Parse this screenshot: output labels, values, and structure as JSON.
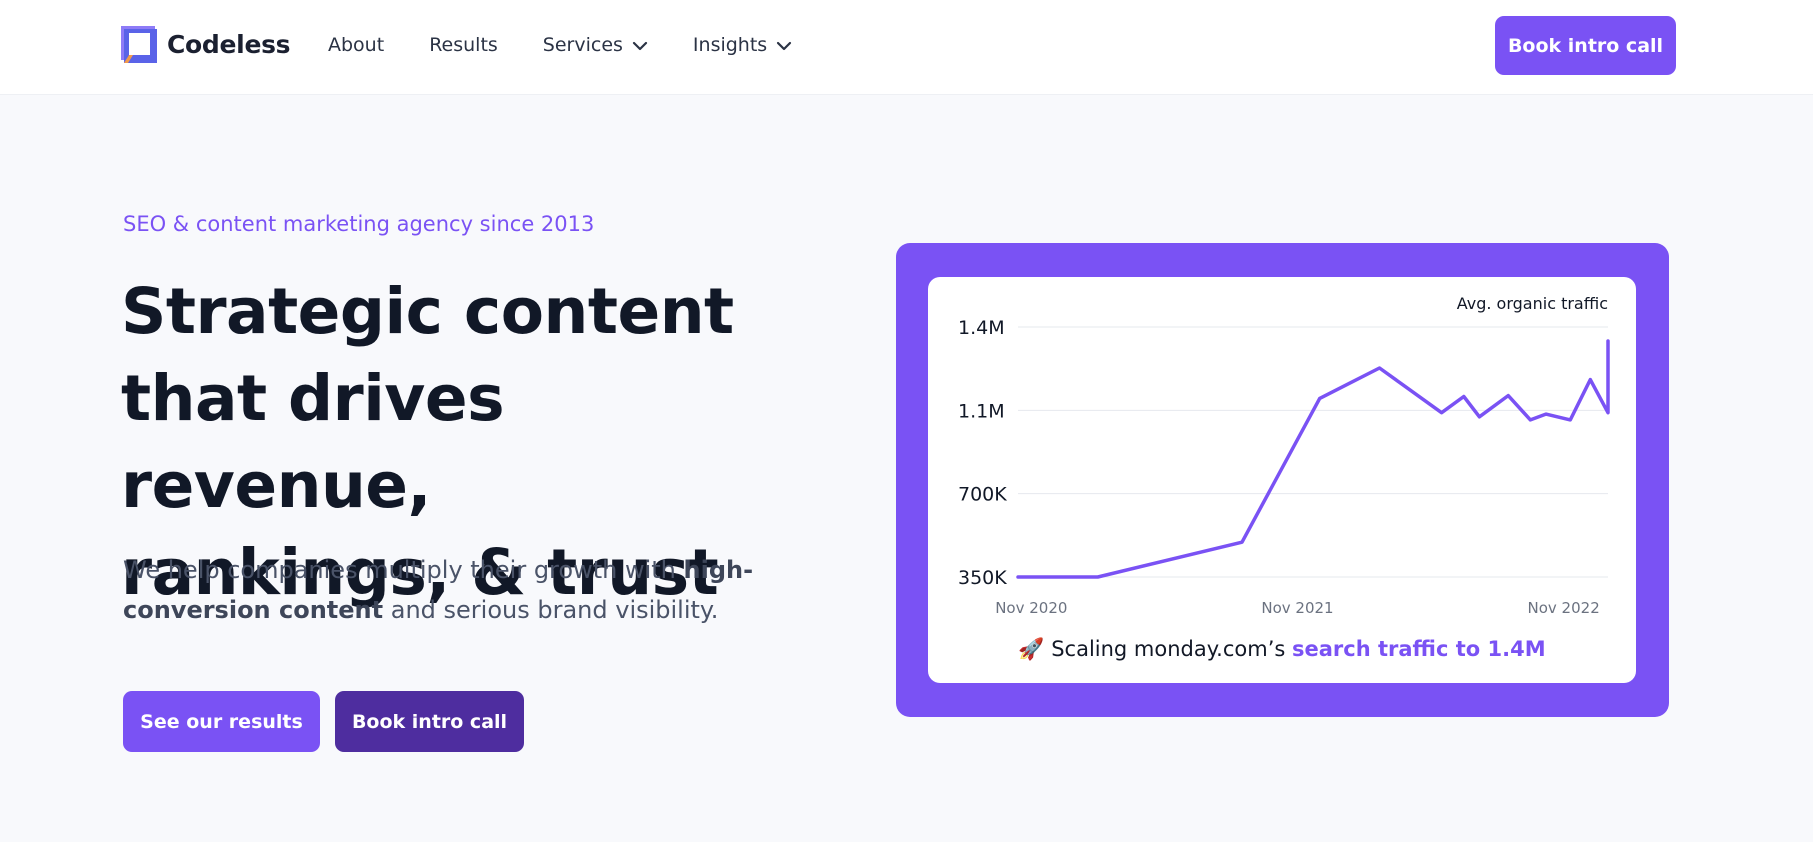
{
  "header": {
    "brand": "Codeless",
    "nav": [
      {
        "label": "About",
        "has_dropdown": false
      },
      {
        "label": "Results",
        "has_dropdown": false
      },
      {
        "label": "Services",
        "has_dropdown": true
      },
      {
        "label": "Insights",
        "has_dropdown": true
      }
    ],
    "cta_label": "Book intro call"
  },
  "hero": {
    "eyebrow": "SEO & content marketing agency since 2013",
    "headline_lines": [
      "Strategic content",
      "that drives revenue,",
      "rankings, & trust"
    ],
    "sub_prefix": "We help companies multiply their growth with ",
    "sub_bold": "high-conversion content",
    "sub_suffix": " and serious brand visibility.",
    "btn_results": "See our results",
    "btn_intro": "Book intro call"
  },
  "chart_caption": {
    "emoji": "🚀",
    "prefix": "Scaling monday.com’s",
    "highlight": "search traffic to 1.4M"
  },
  "colors": {
    "accent": "#7a52f4",
    "accent_dark": "#4e2d9f",
    "heading": "#111827",
    "body": "#4a5368",
    "background": "#f8f9fc"
  },
  "chart_data": {
    "type": "line",
    "title": "Avg. organic traffic",
    "yticks": [
      "1.4M",
      "1.1M",
      "700K",
      "350K"
    ],
    "ytick_values": [
      1400000,
      1050000,
      700000,
      350000
    ],
    "xticks": [
      "Nov 2020",
      "Nov 2021",
      "Nov 2022"
    ],
    "xtick_months": [
      0,
      12,
      24
    ],
    "ylim": [
      350000,
      1400000
    ],
    "xlim": [
      -0.6,
      26
    ],
    "grid": true,
    "series": [
      {
        "color": "#7a52f4",
        "x": [
          -0.6,
          3,
          9.5,
          13,
          15.7,
          18.5,
          21.5,
          24.3,
          26
        ],
        "y": [
          350000,
          350000,
          496000,
          1100000,
          1228000,
          1040000,
          1112000,
          1010000,
          1040000
        ],
        "xy_extra": [
          [
            19.5,
            1108000
          ],
          [
            20.2,
            1023000
          ],
          [
            22.5,
            1010000
          ],
          [
            23.2,
            1034000
          ],
          [
            25.2,
            1179000
          ],
          [
            26,
            1341000
          ]
        ]
      }
    ]
  }
}
